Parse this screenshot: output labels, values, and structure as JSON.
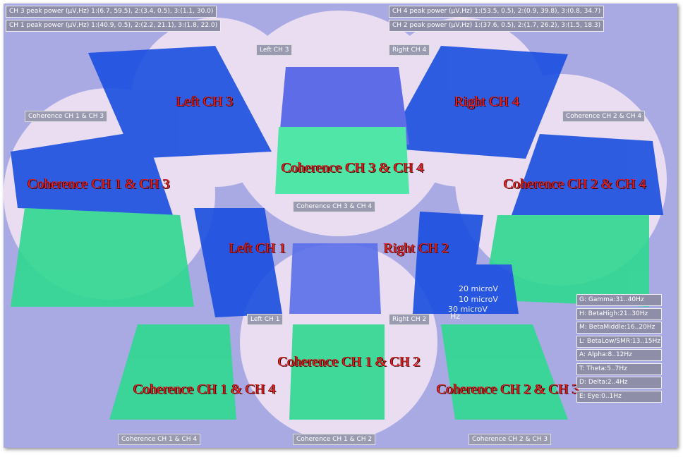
{
  "peak_power": [
    "CH 3 peak power (μV,Hz) 1:(6.7, 59.5), 2:(3.4, 0.5), 3:(1.1, 30.0)",
    "CH 1 peak power (μV,Hz) 1:(40.9, 0.5), 2:(2.2, 21.1), 3:(1.8, 22.0)",
    "CH 4 peak power (μV,Hz) 1:(53.5, 0.5), 2:(0.9, 39.8), 3:(0.8, 34.7)",
    "CH 2 peak power (μV,Hz) 1:(37.6, 0.5), 2:(1.7, 26.2), 3:(1.5, 18.3)"
  ],
  "panel_tags": [
    "Left CH 3",
    "Right CH 4",
    "Coherence CH 1 & CH 3",
    "Coherence CH 2 & CH 4",
    "Coherence CH 3 & CH 4",
    "Left CH 1",
    "Right CH 2",
    "Coherence CH 1 & CH 4",
    "Coherence CH 1 & CH 2",
    "Coherence CH 2 & CH 3"
  ],
  "big_labels": [
    "Left CH 3",
    "Right CH 4",
    "Coherence CH 3 & CH 4",
    "Coherence CH 1 & CH 3",
    "Coherence CH 2 & CH 4",
    "Left CH 1",
    "Right CH 2",
    "Coherence CH 1 & CH 2",
    "Coherence CH 1 & CH 4",
    "Coherence CH 2 & CH 3"
  ],
  "axis_labels": [
    "20 microV",
    "10 microV",
    "30 microV",
    "Hz"
  ],
  "legend": [
    "G: Gamma:31..40Hz",
    "H: BetaHigh:21..30Hz",
    "M: BetaMiddle:16..20Hz",
    "L: BetaLow/SMR:13..15Hz",
    "A: Alpha:8..12Hz",
    "T: Theta:5..7Hz",
    "D: Delta:2..4Hz",
    "E: Eye:0..1Hz"
  ]
}
